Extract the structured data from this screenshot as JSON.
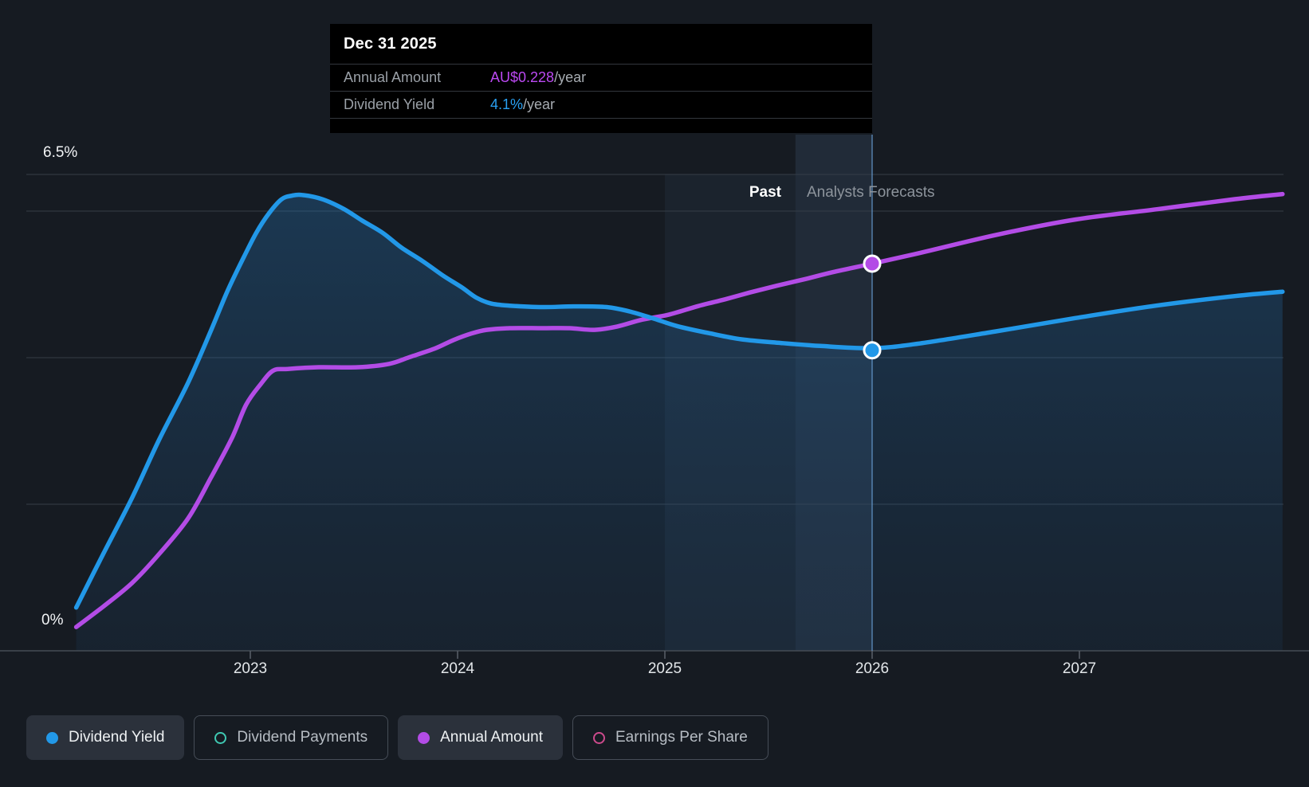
{
  "tooltip": {
    "date": "Dec 31 2025",
    "rows": [
      {
        "label": "Annual Amount",
        "value": "AU$0.228",
        "suffix": "/year",
        "value_color": "#bb49f2"
      },
      {
        "label": "Dividend Yield",
        "value": "4.1%",
        "suffix": "/year",
        "value_color": "#29a0f2"
      }
    ]
  },
  "axis_labels": {
    "y_top": "6.5%",
    "y_bottom": "0%"
  },
  "region_labels": {
    "past": "Past",
    "forecast": "Analysts Forecasts"
  },
  "legend": [
    {
      "label": "Dividend Yield",
      "color": "#2298e8",
      "style": "filled",
      "active": true
    },
    {
      "label": "Dividend Payments",
      "color": "#3fc8b2",
      "style": "outline",
      "active": false
    },
    {
      "label": "Annual Amount",
      "color": "#b34ce6",
      "style": "filled",
      "active": true
    },
    {
      "label": "Earnings Per Share",
      "color": "#cc4a8c",
      "style": "outline",
      "active": false
    }
  ],
  "chart_data": {
    "type": "area",
    "title": "Dividend Yield and Annual Amount — past and analysts forecasts",
    "x_ticks": [
      2023,
      2024,
      2025,
      2026,
      2027
    ],
    "x_range": [
      2022.16,
      2027.98
    ],
    "grid": true,
    "legend_position": "bottom",
    "yield_axis": {
      "label": "Dividend Yield",
      "unit": "%",
      "min": 0,
      "max": 6.5,
      "gridlines": [
        6.5,
        6,
        4,
        2,
        0
      ]
    },
    "amount_axis": {
      "label": "Annual Amount",
      "unit": "AU$",
      "min": 0,
      "max": 0.28
    },
    "today_x": 2025.63,
    "hover": {
      "x": 2026.0,
      "date": "Dec 31 2025",
      "band_start": 2025.0,
      "dividend_yield": 4.1,
      "annual_amount": 0.228
    },
    "series": [
      {
        "name": "Dividend Yield",
        "axis": "yield",
        "unit": "%",
        "color": "#2298e8",
        "points": [
          [
            2022.16,
            0.59
          ],
          [
            2022.29,
            1.32
          ],
          [
            2022.43,
            2.09
          ],
          [
            2022.56,
            2.88
          ],
          [
            2022.7,
            3.66
          ],
          [
            2022.81,
            4.37
          ],
          [
            2022.89,
            4.91
          ],
          [
            2022.97,
            5.38
          ],
          [
            2023.03,
            5.71
          ],
          [
            2023.09,
            5.97
          ],
          [
            2023.15,
            6.16
          ],
          [
            2023.2,
            6.21
          ],
          [
            2023.25,
            6.22
          ],
          [
            2023.35,
            6.16
          ],
          [
            2023.45,
            6.03
          ],
          [
            2023.54,
            5.87
          ],
          [
            2023.64,
            5.7
          ],
          [
            2023.73,
            5.5
          ],
          [
            2023.83,
            5.32
          ],
          [
            2023.93,
            5.12
          ],
          [
            2024.02,
            4.96
          ],
          [
            2024.09,
            4.82
          ],
          [
            2024.16,
            4.74
          ],
          [
            2024.25,
            4.71
          ],
          [
            2024.41,
            4.69
          ],
          [
            2024.56,
            4.7
          ],
          [
            2024.72,
            4.69
          ],
          [
            2024.83,
            4.63
          ],
          [
            2024.95,
            4.53
          ],
          [
            2025.06,
            4.43
          ],
          [
            2025.22,
            4.33
          ],
          [
            2025.37,
            4.25
          ],
          [
            2025.56,
            4.2
          ],
          [
            2025.75,
            4.16
          ],
          [
            2026.0,
            4.13
          ],
          [
            2026.22,
            4.19
          ],
          [
            2026.6,
            4.36
          ],
          [
            2026.98,
            4.54
          ],
          [
            2027.37,
            4.71
          ],
          [
            2027.75,
            4.84
          ],
          [
            2027.98,
            4.9
          ]
        ]
      },
      {
        "name": "Annual Amount",
        "axis": "amount",
        "unit": "AU$",
        "color": "#b34ce6",
        "points": [
          [
            2022.16,
            0.014
          ],
          [
            2022.29,
            0.026
          ],
          [
            2022.43,
            0.04
          ],
          [
            2022.56,
            0.057
          ],
          [
            2022.7,
            0.078
          ],
          [
            2022.81,
            0.102
          ],
          [
            2022.91,
            0.125
          ],
          [
            2022.98,
            0.145
          ],
          [
            2023.05,
            0.157
          ],
          [
            2023.11,
            0.165
          ],
          [
            2023.18,
            0.166
          ],
          [
            2023.33,
            0.167
          ],
          [
            2023.52,
            0.167
          ],
          [
            2023.67,
            0.169
          ],
          [
            2023.77,
            0.173
          ],
          [
            2023.89,
            0.178
          ],
          [
            2023.98,
            0.183
          ],
          [
            2024.07,
            0.187
          ],
          [
            2024.14,
            0.189
          ],
          [
            2024.25,
            0.19
          ],
          [
            2024.41,
            0.19
          ],
          [
            2024.54,
            0.19
          ],
          [
            2024.66,
            0.189
          ],
          [
            2024.77,
            0.191
          ],
          [
            2024.89,
            0.195
          ],
          [
            2025.02,
            0.198
          ],
          [
            2025.16,
            0.203
          ],
          [
            2025.29,
            0.207
          ],
          [
            2025.41,
            0.211
          ],
          [
            2025.54,
            0.215
          ],
          [
            2025.68,
            0.219
          ],
          [
            2025.81,
            0.223
          ],
          [
            2026.0,
            0.228
          ],
          [
            2026.22,
            0.234
          ],
          [
            2026.6,
            0.245
          ],
          [
            2026.98,
            0.254
          ],
          [
            2027.37,
            0.26
          ],
          [
            2027.75,
            0.266
          ],
          [
            2027.98,
            0.269
          ]
        ]
      }
    ]
  }
}
